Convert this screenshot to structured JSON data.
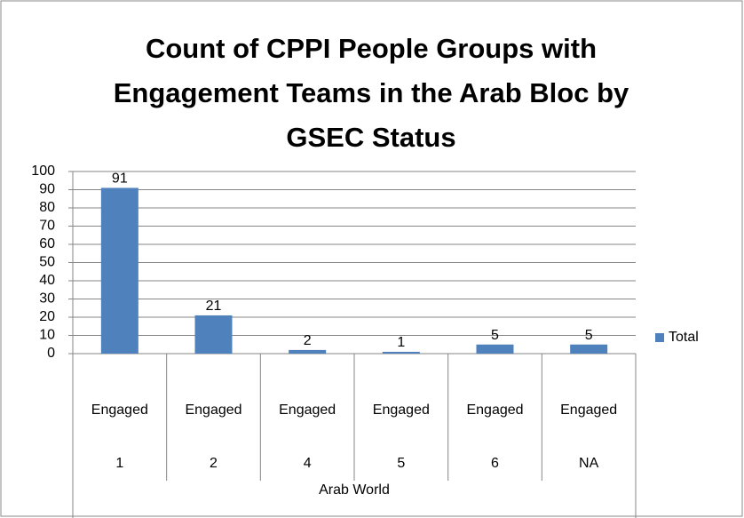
{
  "chart_data": {
    "type": "bar",
    "title": [
      "Count of CPPI People Groups with",
      "Engagement Teams in the Arab Bloc by",
      "GSEC Status"
    ],
    "categories": [
      [
        "Engaged",
        "1"
      ],
      [
        "Engaged",
        "2"
      ],
      [
        "Engaged",
        "4"
      ],
      [
        "Engaged",
        "5"
      ],
      [
        "Engaged",
        "6"
      ],
      [
        "Engaged",
        "NA"
      ]
    ],
    "category_group": "Arab World",
    "series": [
      {
        "name": "Total",
        "color": "#4f81bd",
        "values": [
          91,
          21,
          2,
          1,
          5,
          5
        ]
      }
    ],
    "ylim": [
      0,
      100
    ],
    "yticks": [
      0,
      10,
      20,
      30,
      40,
      50,
      60,
      70,
      80,
      90,
      100
    ],
    "grid": true,
    "legend": "right"
  }
}
